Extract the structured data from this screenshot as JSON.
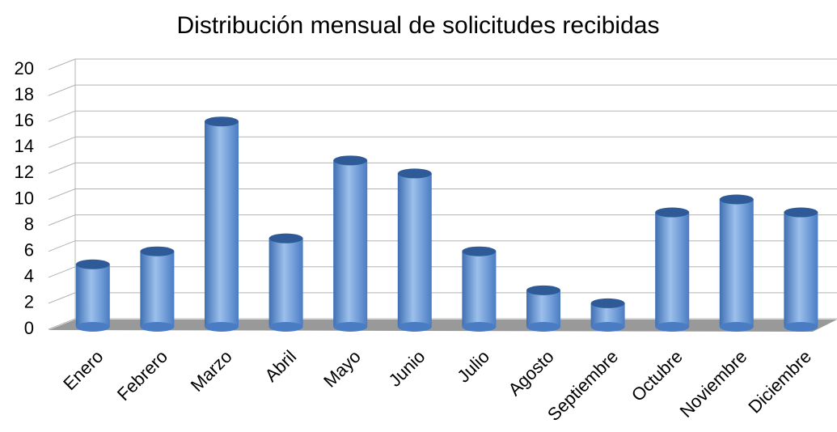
{
  "chart_data": {
    "type": "bar",
    "title": "Distribución mensual de solicitudes recibidas",
    "categories": [
      "Enero",
      "Febrero",
      "Marzo",
      "Abril",
      "Mayo",
      "Junio",
      "Julio",
      "Agosto",
      "Septiembre",
      "Octubre",
      "Noviembre",
      "Diciembre"
    ],
    "values": [
      5,
      6,
      16,
      7,
      13,
      12,
      6,
      3,
      2,
      9,
      10,
      9
    ],
    "color": "#6a9ad8",
    "ylim": [
      0,
      20
    ],
    "yticks": [
      0,
      2,
      4,
      6,
      8,
      10,
      12,
      14,
      16,
      18,
      20
    ],
    "grid": true
  }
}
